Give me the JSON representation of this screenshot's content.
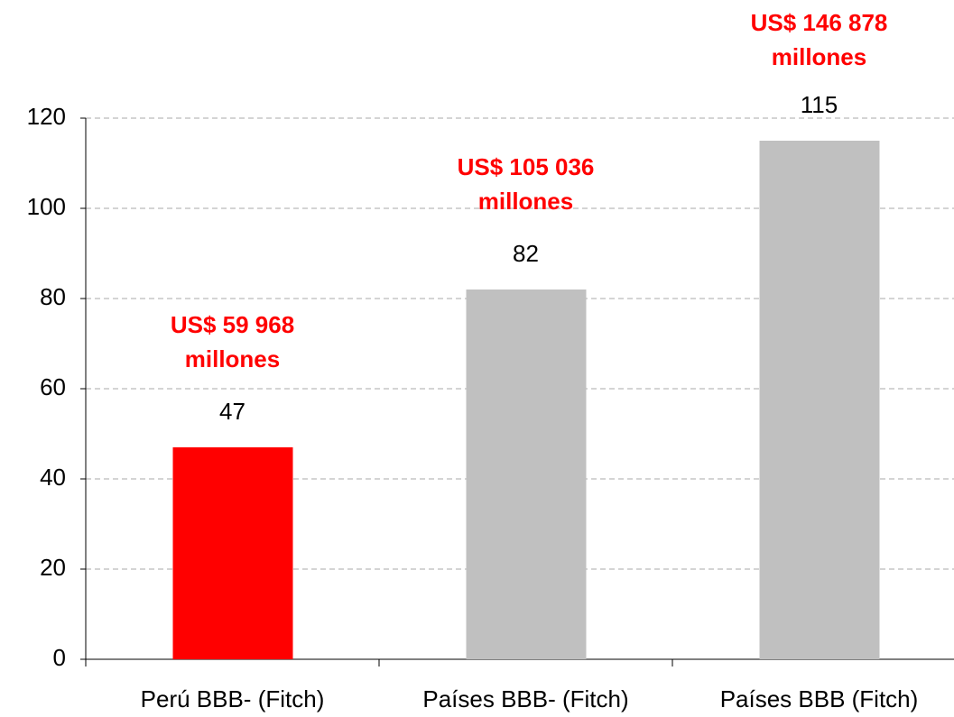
{
  "chart_data": {
    "type": "bar",
    "categories": [
      "Perú BBB- (Fitch)",
      "Países BBB- (Fitch)",
      "Países BBB (Fitch)"
    ],
    "values": [
      47,
      82,
      115
    ],
    "colors": [
      "#ff0000",
      "#c0c0c0",
      "#c0c0c0"
    ],
    "annotations": [
      [
        "US$ 59 968",
        "millones"
      ],
      [
        "US$ 105 036",
        "millones"
      ],
      [
        "US$ 146 878",
        "millones"
      ]
    ],
    "annotation_color": "#ff0000",
    "ylim": [
      0,
      120
    ],
    "yticks": [
      0,
      20,
      40,
      60,
      80,
      100,
      120
    ],
    "grid": true
  }
}
